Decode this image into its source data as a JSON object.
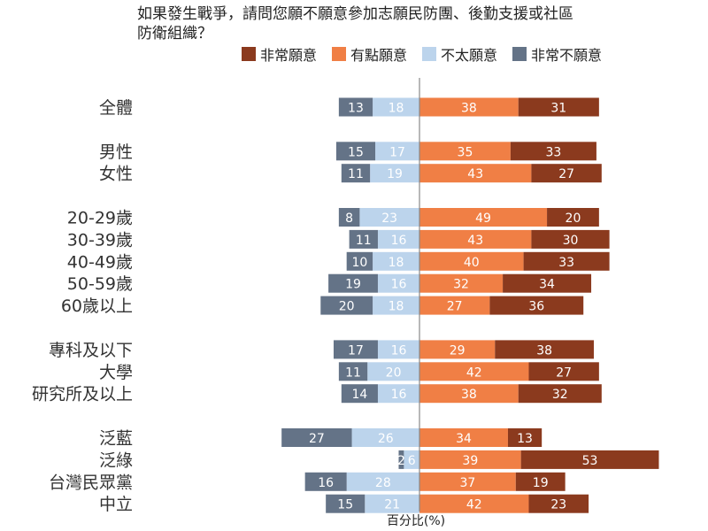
{
  "title_lines": [
    "如果發生戰爭，請問您願不願意參加志願民防團、後勤支援或社區",
    "防衛組織？"
  ],
  "colors": {
    "very_willing": "#8b3a1e",
    "somewhat_willing": "#f07f45",
    "not_very_willing": "#bcd4ec",
    "very_unwilling": "#647387",
    "axis": "#888888",
    "label_dark": "#ffffff",
    "label_light": "#ffffff"
  },
  "chart_data": {
    "type": "bar",
    "orientation": "horizontal",
    "layout": "diverging-stacked",
    "xlabel": "百分比(%)",
    "legend": {
      "position": "top",
      "entries": [
        "非常願意",
        "有點願意",
        "不太願意",
        "非常不願意"
      ]
    },
    "categories": [
      "全體",
      "男性",
      "女性",
      "20-29歲",
      "30-39歲",
      "40-49歲",
      "50-59歲",
      "60歲以上",
      "專科及以下",
      "大學",
      "研究所及以上",
      "泛藍",
      "泛綠",
      "台灣民眾黨",
      "中立"
    ],
    "groups": [
      1,
      2,
      2,
      3,
      3,
      3,
      3,
      3,
      4,
      4,
      4,
      5,
      5,
      5,
      5
    ],
    "series": [
      {
        "name": "非常願意",
        "side": "positive",
        "values": [
          31,
          33,
          27,
          20,
          30,
          33,
          34,
          36,
          38,
          27,
          32,
          13,
          53,
          19,
          23
        ]
      },
      {
        "name": "有點願意",
        "side": "positive",
        "values": [
          38,
          35,
          43,
          49,
          43,
          40,
          32,
          27,
          29,
          42,
          38,
          34,
          39,
          37,
          42
        ]
      },
      {
        "name": "不太願意",
        "side": "negative",
        "values": [
          18,
          17,
          19,
          23,
          16,
          18,
          16,
          18,
          16,
          20,
          16,
          26,
          6,
          28,
          21
        ]
      },
      {
        "name": "非常不願意",
        "side": "negative",
        "values": [
          13,
          15,
          11,
          8,
          11,
          10,
          19,
          20,
          17,
          11,
          14,
          27,
          2,
          16,
          15
        ]
      }
    ]
  }
}
